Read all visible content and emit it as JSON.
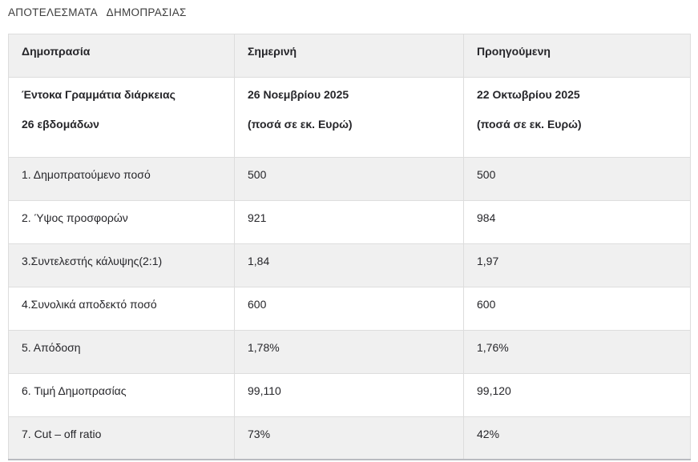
{
  "page_title": "ΑΠΟΤΕΛΕΣΜΑΤΑ   ΔΗΜΟΠΡΑΣΙΑΣ",
  "table": {
    "columns": [
      "Δημοπρασία",
      "Σημερινή",
      "Προηγούμενη"
    ],
    "subheader": {
      "auction_line1": "Έντοκα Γραμμάτια διάρκειας",
      "auction_line2": "26 εβδομάδων",
      "current_line1": "26 Νοεμβρίου 2025",
      "current_line2": "(ποσά σε εκ. Ευρώ)",
      "previous_line1": "22 Οκτωβρίου 2025",
      "previous_line2": "(ποσά σε εκ. Ευρώ)"
    },
    "rows": [
      {
        "label": "1. Δημοπρατούμενο ποσό",
        "current": "500",
        "previous": "500"
      },
      {
        "label": "2. Ύψος προσφορών",
        "current": "921",
        "previous": "984"
      },
      {
        "label": "3.Συντελεστής κάλυψης(2:1)",
        "current": "1,84",
        "previous": "1,97"
      },
      {
        "label": "4.Συνολικά αποδεκτό ποσό",
        "current": "600",
        "previous": "600"
      },
      {
        "label": "5. Απόδοση",
        "current": "1,78%",
        "previous": "1,76%"
      },
      {
        "label": "6. Τιμή Δημοπρασίας",
        "current": "99,110",
        "previous": "99,120"
      },
      {
        "label": "7. Cut – off ratio",
        "current": "73%",
        "previous": "42%"
      }
    ]
  },
  "colors": {
    "background": "#ffffff",
    "row_stripe": "#f0f0f0",
    "cell_border": "#dddddd",
    "table_bottom_border": "#b9bbc0",
    "text": "#26262a",
    "title_text": "#3c3c3c"
  }
}
